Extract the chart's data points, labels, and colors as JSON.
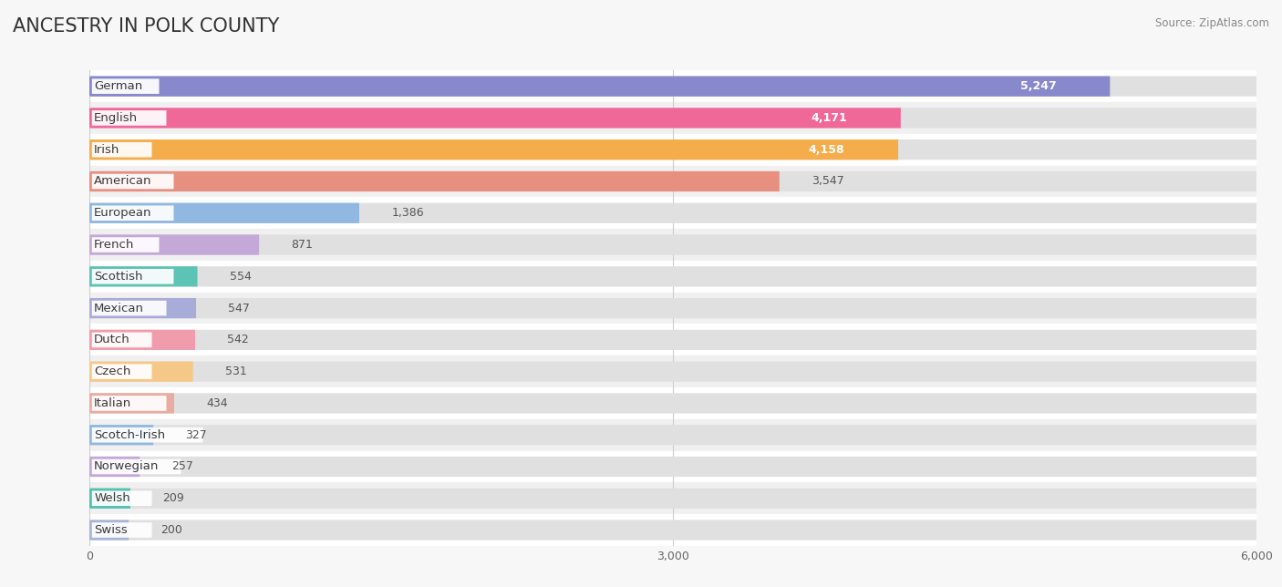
{
  "title": "ANCESTRY IN POLK COUNTY",
  "source": "Source: ZipAtlas.com",
  "categories": [
    "German",
    "English",
    "Irish",
    "American",
    "European",
    "French",
    "Scottish",
    "Mexican",
    "Dutch",
    "Czech",
    "Italian",
    "Scotch-Irish",
    "Norwegian",
    "Welsh",
    "Swiss"
  ],
  "values": [
    5247,
    4171,
    4158,
    3547,
    1386,
    871,
    554,
    547,
    542,
    531,
    434,
    327,
    257,
    209,
    200
  ],
  "bar_colors": [
    "#8888cc",
    "#f06898",
    "#f5ac4a",
    "#e89080",
    "#90b8e0",
    "#c4a8d8",
    "#5cc4b4",
    "#a8acd8",
    "#f09cac",
    "#f5c888",
    "#e8aca0",
    "#90b8e0",
    "#c4a8d8",
    "#50c0b0",
    "#a8b4d8"
  ],
  "background_color": "#f7f7f7",
  "row_bg_even": "#ffffff",
  "row_bg_odd": "#f0f0f0",
  "xlim": [
    0,
    6000
  ],
  "xticks": [
    0,
    3000,
    6000
  ],
  "title_fontsize": 15,
  "label_fontsize": 9.5,
  "value_fontsize": 9
}
